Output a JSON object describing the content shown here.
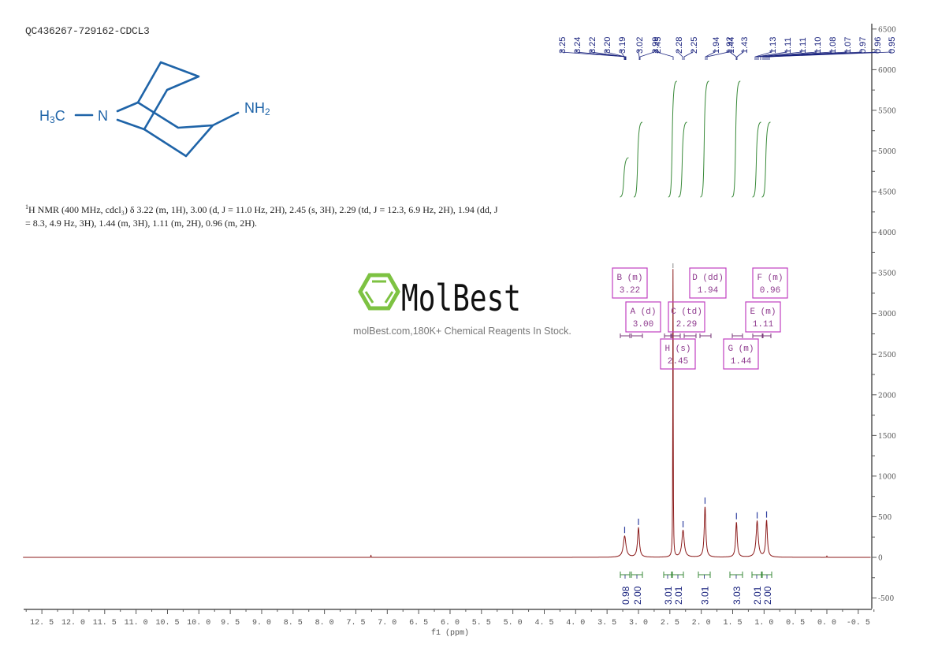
{
  "header": {
    "sample_id": "QC436267-729162-CDCL3"
  },
  "structure": {
    "left_group": "H₃C",
    "nitrogen": "N",
    "right_group": "NH₂",
    "color": "#1f64a8"
  },
  "nmr_description": {
    "prefix_sup": "1",
    "text_line": "H NMR (400 MHz, cdcl₃) δ 3.22 (m, 1H), 3.00 (d, J = 11.0 Hz, 2H), 2.45 (s, 3H), 2.29 (td, J = 12.3, 6.9 Hz, 2H), 1.94 (dd, J = 8.3, 4.9 Hz, 3H), 1.44 (m, 3H), 1.11 (m, 2H), 0.96 (m, 2H)."
  },
  "watermark": {
    "brand": "MolBest",
    "tagline": "molBest.com,180K+ Chemical Reagents In Stock.",
    "logo_color": "#7dc242"
  },
  "chart_data": {
    "type": "line",
    "title": "QC436267-729162-CDCL3",
    "xlabel": "f1 (ppm)",
    "ylabel": "",
    "xlim": [
      12.75,
      -0.7
    ],
    "ylim": [
      -600,
      6600
    ],
    "x_ticks": [
      "12.5",
      "12.0",
      "11.5",
      "11.0",
      "10.5",
      "10.0",
      "9.5",
      "9.0",
      "8.5",
      "8.0",
      "7.5",
      "7.0",
      "6.5",
      "6.0",
      "5.5",
      "5.0",
      "4.5",
      "4.0",
      "3.5",
      "3.0",
      "2.5",
      "2.0",
      "1.5",
      "1.0",
      "0.5",
      "0.0",
      "-0.5"
    ],
    "y_ticks": [
      "6500",
      "6000",
      "5500",
      "5000",
      "4500",
      "4000",
      "3500",
      "3000",
      "2500",
      "2000",
      "1500",
      "1000",
      "500",
      "0",
      "-500"
    ],
    "grid": false,
    "colors": {
      "spectrum": "#8b1a1a",
      "integral": "#3a8a3a",
      "peak_labels": "#1a237e",
      "multiplet_boxes": "#c040c0",
      "axis": "#555555"
    },
    "peaks": [
      {
        "ppm": 3.22,
        "intensity": 260
      },
      {
        "ppm": 3.0,
        "intensity": 360
      },
      {
        "ppm": 2.45,
        "intensity": 3540
      },
      {
        "ppm": 2.29,
        "intensity": 330
      },
      {
        "ppm": 1.94,
        "intensity": 620
      },
      {
        "ppm": 1.44,
        "intensity": 430
      },
      {
        "ppm": 1.11,
        "intensity": 440
      },
      {
        "ppm": 0.96,
        "intensity": 450
      },
      {
        "ppm": 7.26,
        "intensity": 30
      },
      {
        "ppm": 0.0,
        "intensity": 20
      }
    ],
    "peak_labels": [
      "3.25",
      "3.24",
      "3.22",
      "3.20",
      "3.19",
      "3.02",
      "2.99",
      "2.45",
      "2.28",
      "2.25",
      "1.94",
      "1.92",
      "1.44",
      "1.43",
      "1.13",
      "1.11",
      "1.11",
      "1.10",
      "1.08",
      "1.07",
      "0.97",
      "0.96",
      "0.95"
    ],
    "multiplets": [
      {
        "id": "B",
        "mult": "m",
        "shift": "3.22"
      },
      {
        "id": "A",
        "mult": "d",
        "shift": "3.00"
      },
      {
        "id": "H",
        "mult": "s",
        "shift": "2.45"
      },
      {
        "id": "C",
        "mult": "td",
        "shift": "2.29"
      },
      {
        "id": "D",
        "mult": "dd",
        "shift": "1.94"
      },
      {
        "id": "G",
        "mult": "m",
        "shift": "1.44"
      },
      {
        "id": "E",
        "mult": "m",
        "shift": "1.11"
      },
      {
        "id": "F",
        "mult": "m",
        "shift": "0.96"
      }
    ],
    "integrals": [
      {
        "ppm": 3.22,
        "value": "0.98"
      },
      {
        "ppm": 3.0,
        "value": "2.00"
      },
      {
        "ppm": 2.45,
        "value": "3.01"
      },
      {
        "ppm": 2.29,
        "value": "2.01"
      },
      {
        "ppm": 1.94,
        "value": "3.01"
      },
      {
        "ppm": 1.44,
        "value": "3.03"
      },
      {
        "ppm": 1.11,
        "value": "2.01"
      },
      {
        "ppm": 0.96,
        "value": "2.00"
      }
    ]
  }
}
